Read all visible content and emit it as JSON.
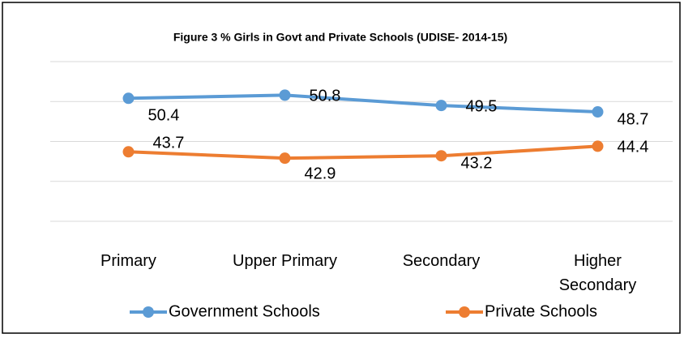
{
  "chart_data": {
    "type": "line",
    "title": "Figure 3  % Girls in Govt and Private Schools (UDISE- 2014-15)",
    "categories": [
      "Primary",
      "Upper Primary",
      "Secondary",
      "Higher Secondary"
    ],
    "series": [
      {
        "name": "Government Schools",
        "color": "#5b9bd5",
        "values": [
          50.4,
          50.8,
          49.5,
          48.7
        ]
      },
      {
        "name": "Private Schools",
        "color": "#ed7d31",
        "values": [
          43.7,
          42.9,
          43.2,
          44.4
        ]
      }
    ],
    "ylim": [
      35,
      55
    ],
    "yticks": [
      35,
      40,
      45,
      50,
      55
    ],
    "grid": true,
    "legend": "bottom"
  }
}
